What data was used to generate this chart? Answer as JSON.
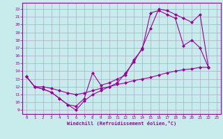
{
  "xlabel": "Windchill (Refroidissement éolien,°C)",
  "xlim": [
    -0.5,
    23.5
  ],
  "ylim": [
    8.5,
    22.8
  ],
  "xticks": [
    0,
    1,
    2,
    3,
    4,
    5,
    6,
    7,
    8,
    9,
    10,
    11,
    12,
    13,
    14,
    15,
    16,
    17,
    18,
    19,
    20,
    21,
    22,
    23
  ],
  "yticks": [
    9,
    10,
    11,
    12,
    13,
    14,
    15,
    16,
    17,
    18,
    19,
    20,
    21,
    22
  ],
  "bg_color": "#c8ecec",
  "line_color": "#990099",
  "grid_color": "#aaaacc",
  "line1_x": [
    0,
    1,
    2,
    3,
    4,
    5,
    6,
    7,
    8,
    9,
    10,
    11,
    12,
    13,
    14,
    15,
    16,
    17,
    18,
    19,
    20,
    21,
    22
  ],
  "line1_y": [
    13.3,
    12.0,
    11.7,
    11.3,
    10.5,
    9.7,
    9.5,
    10.5,
    13.8,
    12.2,
    12.5,
    13.0,
    13.5,
    15.5,
    16.8,
    21.5,
    21.8,
    21.3,
    20.8,
    17.3,
    18.0,
    17.0,
    14.5
  ],
  "line2_x": [
    0,
    1,
    2,
    3,
    4,
    5,
    6,
    7,
    8,
    9,
    10,
    11,
    12,
    13,
    14,
    15,
    16,
    17,
    18,
    19,
    20,
    21,
    22
  ],
  "line2_y": [
    13.3,
    12.0,
    11.7,
    11.3,
    10.5,
    9.7,
    9.0,
    10.2,
    11.0,
    11.5,
    12.0,
    12.5,
    13.8,
    15.2,
    17.0,
    19.5,
    22.0,
    21.8,
    21.3,
    20.8,
    20.3,
    21.3,
    14.5
  ],
  "line3_x": [
    0,
    1,
    2,
    3,
    4,
    5,
    6,
    7,
    8,
    9,
    10,
    11,
    12,
    13,
    14,
    15,
    16,
    17,
    18,
    19,
    20,
    21,
    22
  ],
  "line3_y": [
    13.3,
    12.0,
    12.0,
    11.8,
    11.5,
    11.2,
    11.0,
    11.2,
    11.5,
    11.8,
    12.0,
    12.3,
    12.5,
    12.8,
    13.0,
    13.2,
    13.5,
    13.8,
    14.0,
    14.2,
    14.3,
    14.5,
    14.5
  ]
}
